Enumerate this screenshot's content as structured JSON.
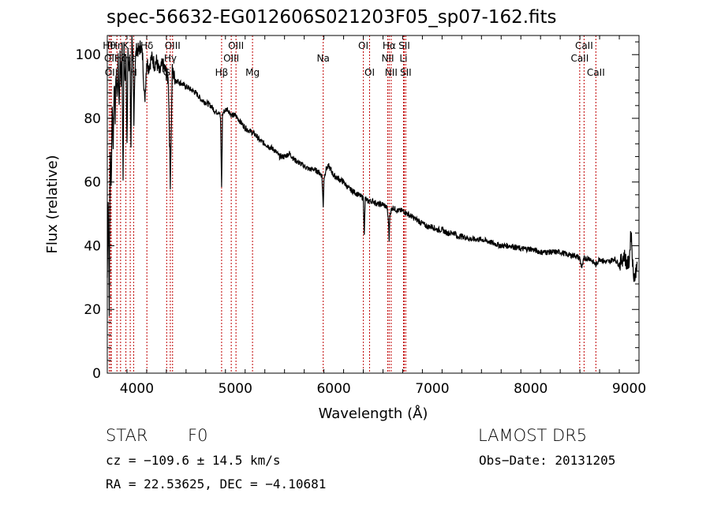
{
  "chart_data": {
    "type": "line",
    "title": "spec-56632-EG012606S021203F05_sp07-162.fits",
    "xlabel": "Wavelength (Å)",
    "ylabel": "Flux (relative)",
    "xlim": [
      3700,
      9100
    ],
    "ylim": [
      0,
      106
    ],
    "x_ticks": [
      4000,
      5000,
      6000,
      7000,
      8000,
      9000
    ],
    "y_ticks": [
      0,
      20,
      40,
      60,
      80,
      100
    ],
    "grid": false,
    "series": [
      {
        "x": [
          3700,
          3710,
          3720,
          3730,
          3740,
          3750,
          3760,
          3770,
          3780,
          3790,
          3800,
          3810,
          3820,
          3830,
          3840,
          3850,
          3860,
          3870,
          3880,
          3890,
          3900,
          3910,
          3920,
          3930,
          3940,
          3950,
          3960,
          3970,
          3980,
          3990,
          4000,
          4020,
          4040,
          4060,
          4080,
          4100,
          4120,
          4150,
          4180,
          4200,
          4230,
          4260,
          4290,
          4320,
          4340,
          4360,
          4380,
          4400,
          4450,
          4500,
          4550,
          4600,
          4650,
          4700,
          4750,
          4800,
          4840,
          4850,
          4861,
          4870,
          4880,
          4920,
          4960,
          5000,
          5050,
          5100,
          5150,
          5200,
          5250,
          5300,
          5350,
          5400,
          5450,
          5500,
          5550,
          5600,
          5650,
          5700,
          5750,
          5800,
          5850,
          5880,
          5893,
          5900,
          5920,
          5950,
          6000,
          6050,
          6100,
          6150,
          6200,
          6250,
          6300,
          6310,
          6320,
          6340,
          6400,
          6450,
          6500,
          6540,
          6555,
          6563,
          6570,
          6580,
          6600,
          6650,
          6700,
          6750,
          6800,
          6850,
          6900,
          6950,
          7000,
          7050,
          7100,
          7150,
          7200,
          7240,
          7250,
          7260,
          7300,
          7400,
          7500,
          7600,
          7700,
          7800,
          7900,
          8000,
          8100,
          8200,
          8300,
          8400,
          8450,
          8498,
          8520,
          8542,
          8580,
          8600,
          8662,
          8700,
          8750,
          8800,
          8850,
          8900,
          8950,
          8980,
          9000,
          9020,
          9040,
          9060,
          9080
        ],
        "y": [
          30,
          55,
          20,
          70,
          58,
          85,
          70,
          92,
          80,
          95,
          86,
          98,
          84,
          100,
          92,
          102,
          60,
          103,
          92,
          100,
          70,
          102,
          95,
          100,
          72,
          104,
          98,
          80,
          95,
          100,
          102,
          101,
          103,
          99,
          85,
          98,
          96,
          99,
          97,
          98,
          94,
          97,
          95,
          92,
          60,
          95,
          93,
          92,
          91,
          90,
          89,
          88,
          86,
          85,
          84,
          82,
          82,
          80,
          58,
          81,
          82,
          83,
          81,
          81,
          79,
          77,
          76,
          75,
          73,
          72,
          71,
          70,
          68,
          68,
          69,
          67,
          66,
          65,
          64,
          64,
          63,
          62,
          52,
          61,
          64,
          65,
          62,
          61,
          60,
          58,
          57,
          56,
          55,
          44,
          55,
          54,
          54,
          53,
          53,
          52,
          48,
          42,
          50,
          51,
          52,
          51,
          51,
          50,
          49,
          48,
          47,
          46,
          46,
          45,
          45,
          44,
          44,
          44,
          42,
          43,
          43,
          42,
          42,
          41,
          40,
          40,
          39,
          39,
          38,
          38,
          38,
          37,
          37,
          36,
          33,
          36,
          36,
          36,
          34,
          36,
          35,
          35,
          36,
          34,
          37,
          34,
          35,
          45,
          32,
          30,
          35
        ]
      }
    ],
    "line_labels": [
      {
        "w": 3720,
        "label": "Hθ",
        "row": 0
      },
      {
        "w": 3734,
        "label": "OII",
        "row": 1
      },
      {
        "w": 3740,
        "label": "OII",
        "row": 2
      },
      {
        "w": 3798,
        "label": "Hη",
        "row": 0
      },
      {
        "w": 3835,
        "label": "Hζ",
        "row": 1
      },
      {
        "w": 3889,
        "label": "K",
        "row": 0
      },
      {
        "w": 3933,
        "label": "Hε",
        "row": 1
      },
      {
        "w": 3968,
        "label": "H",
        "row": 2
      },
      {
        "w": 4102,
        "label": "Hδ",
        "row": 0
      },
      {
        "w": 4303,
        "label": "G",
        "row": 2
      },
      {
        "w": 4340,
        "label": "Hγ",
        "row": 1
      },
      {
        "w": 4363,
        "label": "OIII",
        "row": 0
      },
      {
        "w": 4861,
        "label": "Hβ",
        "row": 2
      },
      {
        "w": 4959,
        "label": "OIII",
        "row": 1
      },
      {
        "w": 5007,
        "label": "OIII",
        "row": 0
      },
      {
        "w": 5175,
        "label": "Mg",
        "row": 2
      },
      {
        "w": 5893,
        "label": "Na",
        "row": 1
      },
      {
        "w": 6300,
        "label": "OI",
        "row": 0
      },
      {
        "w": 6364,
        "label": "OI",
        "row": 2
      },
      {
        "w": 6548,
        "label": "NII",
        "row": 1
      },
      {
        "w": 6563,
        "label": "Hα",
        "row": 0
      },
      {
        "w": 6583,
        "label": "NII",
        "row": 2
      },
      {
        "w": 6708,
        "label": "Li",
        "row": 1
      },
      {
        "w": 6716,
        "label": "SII",
        "row": 0
      },
      {
        "w": 6731,
        "label": "SII",
        "row": 2
      },
      {
        "w": 8498,
        "label": "CaII",
        "row": 1
      },
      {
        "w": 8542,
        "label": "CaII",
        "row": 0
      },
      {
        "w": 8662,
        "label": "CaII",
        "row": 2
      }
    ]
  },
  "info": {
    "object_class": "STAR",
    "subclass": "F0",
    "survey": "LAMOST DR5",
    "redshift": "cz = −109.6 ± 14.5 km/s",
    "obs_date": "Obs−Date: 20131205",
    "coords": "RA =  22.53625, DEC =  −4.10681"
  }
}
